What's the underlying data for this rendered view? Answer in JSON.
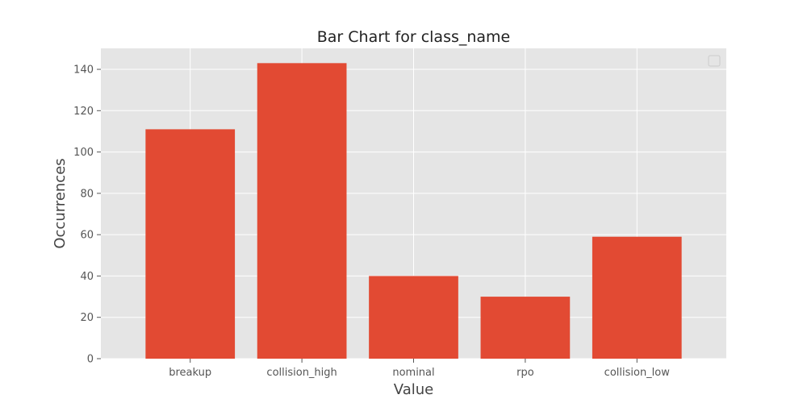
{
  "chart_data": {
    "type": "bar",
    "title": "Bar Chart for class_name",
    "xlabel": "Value",
    "ylabel": "Occurrences",
    "categories": [
      "breakup",
      "collision_high",
      "nominal",
      "rpo",
      "collision_low"
    ],
    "values": [
      111,
      143,
      40,
      30,
      59
    ],
    "ylim": [
      0,
      150.15
    ],
    "yticks": [
      0,
      20,
      40,
      60,
      80,
      100,
      120,
      140
    ],
    "grid": true,
    "legend": "top-right",
    "colors": {
      "bar": "#E24A33",
      "plot_background": "#E5E5E5",
      "grid": "#FFFFFF"
    }
  }
}
